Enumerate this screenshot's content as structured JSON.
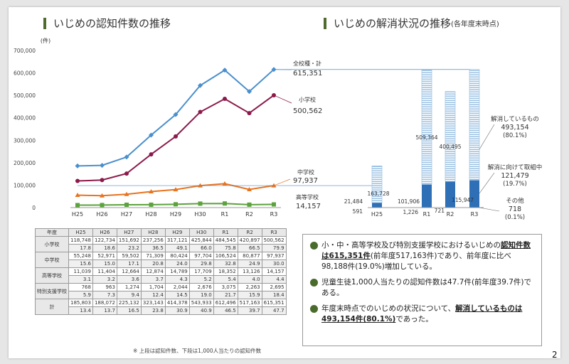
{
  "headings": {
    "left": "いじめの認知件数の推移",
    "right_main": "いじめの解消状況の推移",
    "right_sub": "(各年度末時点)"
  },
  "chart_data": [
    {
      "type": "line",
      "title": "いじめの認知件数の推移",
      "y_unit": "(件)",
      "x": [
        "H25",
        "H26",
        "H27",
        "H28",
        "H29",
        "H30",
        "R1",
        "R2",
        "R3"
      ],
      "ylim": [
        0,
        700000
      ],
      "y_ticks": [
        "0",
        "100,000",
        "200,000",
        "300,000",
        "400,000",
        "500,000",
        "600,000",
        "700,000"
      ],
      "grid": false,
      "series": [
        {
          "name": "全校種・計",
          "label_value": "615,351",
          "color": "#4a8fcc",
          "values": [
            185803,
            188072,
            225132,
            323143,
            414378,
            543933,
            612496,
            517163,
            615351
          ]
        },
        {
          "name": "小学校",
          "label_value": "500,562",
          "color": "#8b1a4a",
          "values": [
            118748,
            122734,
            151692,
            237256,
            317121,
            425844,
            484545,
            420897,
            500562
          ]
        },
        {
          "name": "中学校",
          "label_value": "97,937",
          "color": "#e8731f",
          "values": [
            55248,
            52971,
            59502,
            71309,
            80424,
            97704,
            106524,
            80877,
            97937
          ]
        },
        {
          "name": "高等学校",
          "label_value": "14,157",
          "color": "#5ba33c",
          "values": [
            11039,
            11404,
            12664,
            12874,
            14789,
            17709,
            18352,
            13126,
            14157
          ]
        }
      ]
    },
    {
      "type": "bar",
      "title": "いじめの解消状況の推移(各年度末時点)",
      "categories": [
        "H25",
        "R1",
        "R2",
        "R3"
      ],
      "totals": [
        185803,
        612496,
        517163,
        615351
      ],
      "series": [
        {
          "name": "解消しているもの",
          "color": "#9cc2e3",
          "values": [
            163728,
            509364,
            400495,
            493154
          ]
        },
        {
          "name": "解消に向けて取組中",
          "color": "#2e6fb5",
          "values": [
            21484,
            101906,
            115947,
            121479
          ]
        },
        {
          "name": "その他",
          "color": "#777777",
          "values": [
            591,
            1226,
            721,
            718
          ]
        }
      ],
      "value_labels": {
        "H25": {
          "resolved": "163,728",
          "working": "21,484",
          "other": "591"
        },
        "R1": {
          "resolved": "509,364",
          "working": "101,906",
          "other": "1,226"
        },
        "R2": {
          "resolved": "400,495",
          "working": "115,947",
          "other": "721"
        }
      },
      "legend_notes": [
        {
          "label": "解消しているもの",
          "value": "493,154",
          "pct": "(80.1%)"
        },
        {
          "label": "解消に向けて取組中",
          "value": "121,479",
          "pct": "(19.7%)"
        },
        {
          "label": "その他",
          "value": "718",
          "pct": "(0.1%)"
        }
      ]
    },
    {
      "type": "table",
      "headers": [
        "年度",
        "H25",
        "H26",
        "H27",
        "H28",
        "H29",
        "H30",
        "R1",
        "R2",
        "R3"
      ],
      "rows": [
        {
          "label": "小学校",
          "counts": [
            "118,748",
            "122,734",
            "151,692",
            "237,256",
            "317,121",
            "425,844",
            "484,545",
            "420,897",
            "500,562"
          ],
          "per1000": [
            "17.8",
            "18.6",
            "23.2",
            "36.5",
            "49.1",
            "66.0",
            "75.8",
            "66.5",
            "79.9"
          ]
        },
        {
          "label": "中学校",
          "counts": [
            "55,248",
            "52,971",
            "59,502",
            "71,309",
            "80,424",
            "97,704",
            "106,524",
            "80,877",
            "97,937"
          ],
          "per1000": [
            "15.6",
            "15.0",
            "17.1",
            "20.8",
            "24.0",
            "29.8",
            "32.8",
            "24.9",
            "30.0"
          ]
        },
        {
          "label": "高等学校",
          "counts": [
            "11,039",
            "11,404",
            "12,664",
            "12,874",
            "14,789",
            "17,709",
            "18,352",
            "13,126",
            "14,157"
          ],
          "per1000": [
            "3.1",
            "3.2",
            "3.6",
            "3.7",
            "4.3",
            "5.2",
            "5.4",
            "4.0",
            "4.4"
          ]
        },
        {
          "label": "特別支援学校",
          "counts": [
            "768",
            "963",
            "1,274",
            "1,704",
            "2,044",
            "2,676",
            "3,075",
            "2,263",
            "2,695"
          ],
          "per1000": [
            "5.9",
            "7.3",
            "9.4",
            "12.4",
            "14.5",
            "19.0",
            "21.7",
            "15.9",
            "18.4"
          ]
        },
        {
          "label": "計",
          "counts": [
            "185,803",
            "188,072",
            "225,132",
            "323,143",
            "414,378",
            "543,933",
            "612,496",
            "517,163",
            "615,351"
          ],
          "per1000": [
            "13.4",
            "13.7",
            "16.5",
            "23.8",
            "30.9",
            "40.9",
            "46.5",
            "39.7",
            "47.7"
          ]
        }
      ]
    }
  ],
  "table_note": "※ 上段は認知件数、下段は1,000人当たりの認知件数",
  "summary": [
    {
      "pre": "小・中・高等学校及び特別支援学校におけるいじめの",
      "em": "認知件数は615,351件",
      "post": "(前年度517,163件)であり、前年度に比べ98,188件(19.0%)増加している。"
    },
    {
      "pre": "児童生徒1,000人当たりの認知件数は47.7件(前年度39.7件)である。",
      "em": "",
      "post": ""
    },
    {
      "pre": "年度末時点でのいじめの状況について、",
      "em": "解消しているものは493,154件(80.1%)",
      "post": "であった。"
    }
  ],
  "page_number": "2"
}
